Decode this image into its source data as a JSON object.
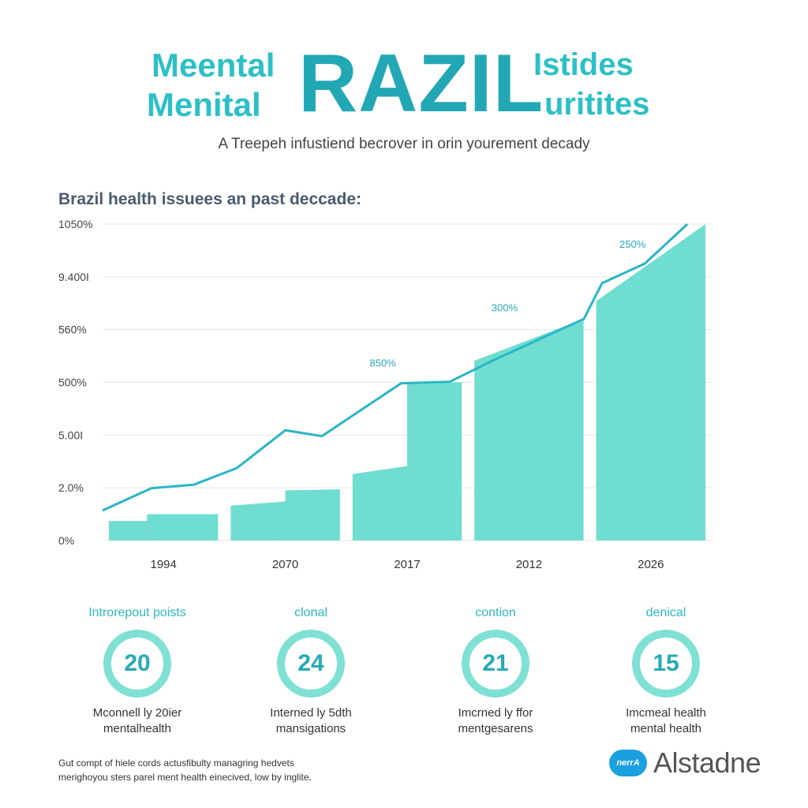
{
  "header": {
    "word_top_left": "Meental",
    "word_bottom_left": "Menital",
    "word_big": "RAZIL",
    "word_top_right": "Istides",
    "word_bottom_right": "uritites",
    "subtitle": "A Treepeh infustiend becrover in orin yourement decady"
  },
  "chart_data": {
    "type": "bar",
    "title": "Brazil health issuees an past deccade:",
    "y_tick_labels": [
      "1050%",
      "9.400I",
      "560%",
      "500%",
      "5.00I",
      "2.0%",
      "0%"
    ],
    "categories": [
      "1994",
      "2070",
      "2017",
      "2012",
      "2026"
    ],
    "ylim": [
      0,
      6
    ],
    "bar_segments": [
      [
        {
          "start": 0.0,
          "end": 0.35,
          "from": 0.37,
          "to": 0.37
        },
        {
          "start": 0.35,
          "end": 1.0,
          "from": 0.5,
          "to": 0.5
        }
      ],
      [
        {
          "start": 0.0,
          "end": 0.5,
          "from": 0.66,
          "to": 0.74
        },
        {
          "start": 0.5,
          "end": 1.0,
          "from": 0.95,
          "to": 0.97
        }
      ],
      [
        {
          "start": 0.0,
          "end": 0.5,
          "from": 1.26,
          "to": 1.41
        },
        {
          "start": 0.5,
          "end": 1.0,
          "from": 3.0,
          "to": 3.0
        }
      ],
      [
        {
          "start": 0.0,
          "end": 1.0,
          "from": 3.41,
          "to": 4.2
        }
      ],
      [
        {
          "start": 0.0,
          "end": 1.0,
          "from": 4.54,
          "to": 6.0
        }
      ]
    ],
    "trend_line": [
      [
        0.0,
        0.57
      ],
      [
        0.4,
        0.99
      ],
      [
        0.75,
        1.06
      ],
      [
        1.1,
        1.37
      ],
      [
        1.5,
        2.09
      ],
      [
        1.8,
        1.98
      ],
      [
        2.45,
        2.98
      ],
      [
        2.85,
        3.01
      ],
      [
        3.2,
        3.41
      ],
      [
        3.95,
        4.2
      ],
      [
        4.1,
        4.88
      ],
      [
        4.45,
        5.25
      ],
      [
        4.8,
        6.0
      ]
    ],
    "annotations": [
      {
        "text": "850%",
        "x": 2.3,
        "y": 3.3
      },
      {
        "text": "300%",
        "x": 3.3,
        "y": 4.35
      },
      {
        "text": "250%",
        "x": 4.35,
        "y": 5.55
      }
    ]
  },
  "stats": [
    {
      "label": "Introrepout poists",
      "value": "20",
      "desc_line1": "Mconnell ly 20ier",
      "desc_line2": "mentalhealth"
    },
    {
      "label": "clonal",
      "value": "24",
      "desc_line1": "Interned ly 5dth",
      "desc_line2": "mansigations"
    },
    {
      "label": "contion",
      "value": "21",
      "desc_line1": "Imcrned ly ffor",
      "desc_line2": "mentgesarens"
    },
    {
      "label": "denical",
      "value": "15",
      "desc_line1": "Imcmeal health",
      "desc_line2": "mental health"
    }
  ],
  "footer": {
    "line1": "Gut compt of hiele cords actusfibulty managring hedvets",
    "line2": "merighoyou sters parel ment health einecived, low by inglite."
  },
  "logo": {
    "badge": "nerrA",
    "text": "Alstadne"
  },
  "colors": {
    "bar_fill": "#6fddd0",
    "line": "#2ab6c6",
    "accent": "#2cc0c6"
  }
}
